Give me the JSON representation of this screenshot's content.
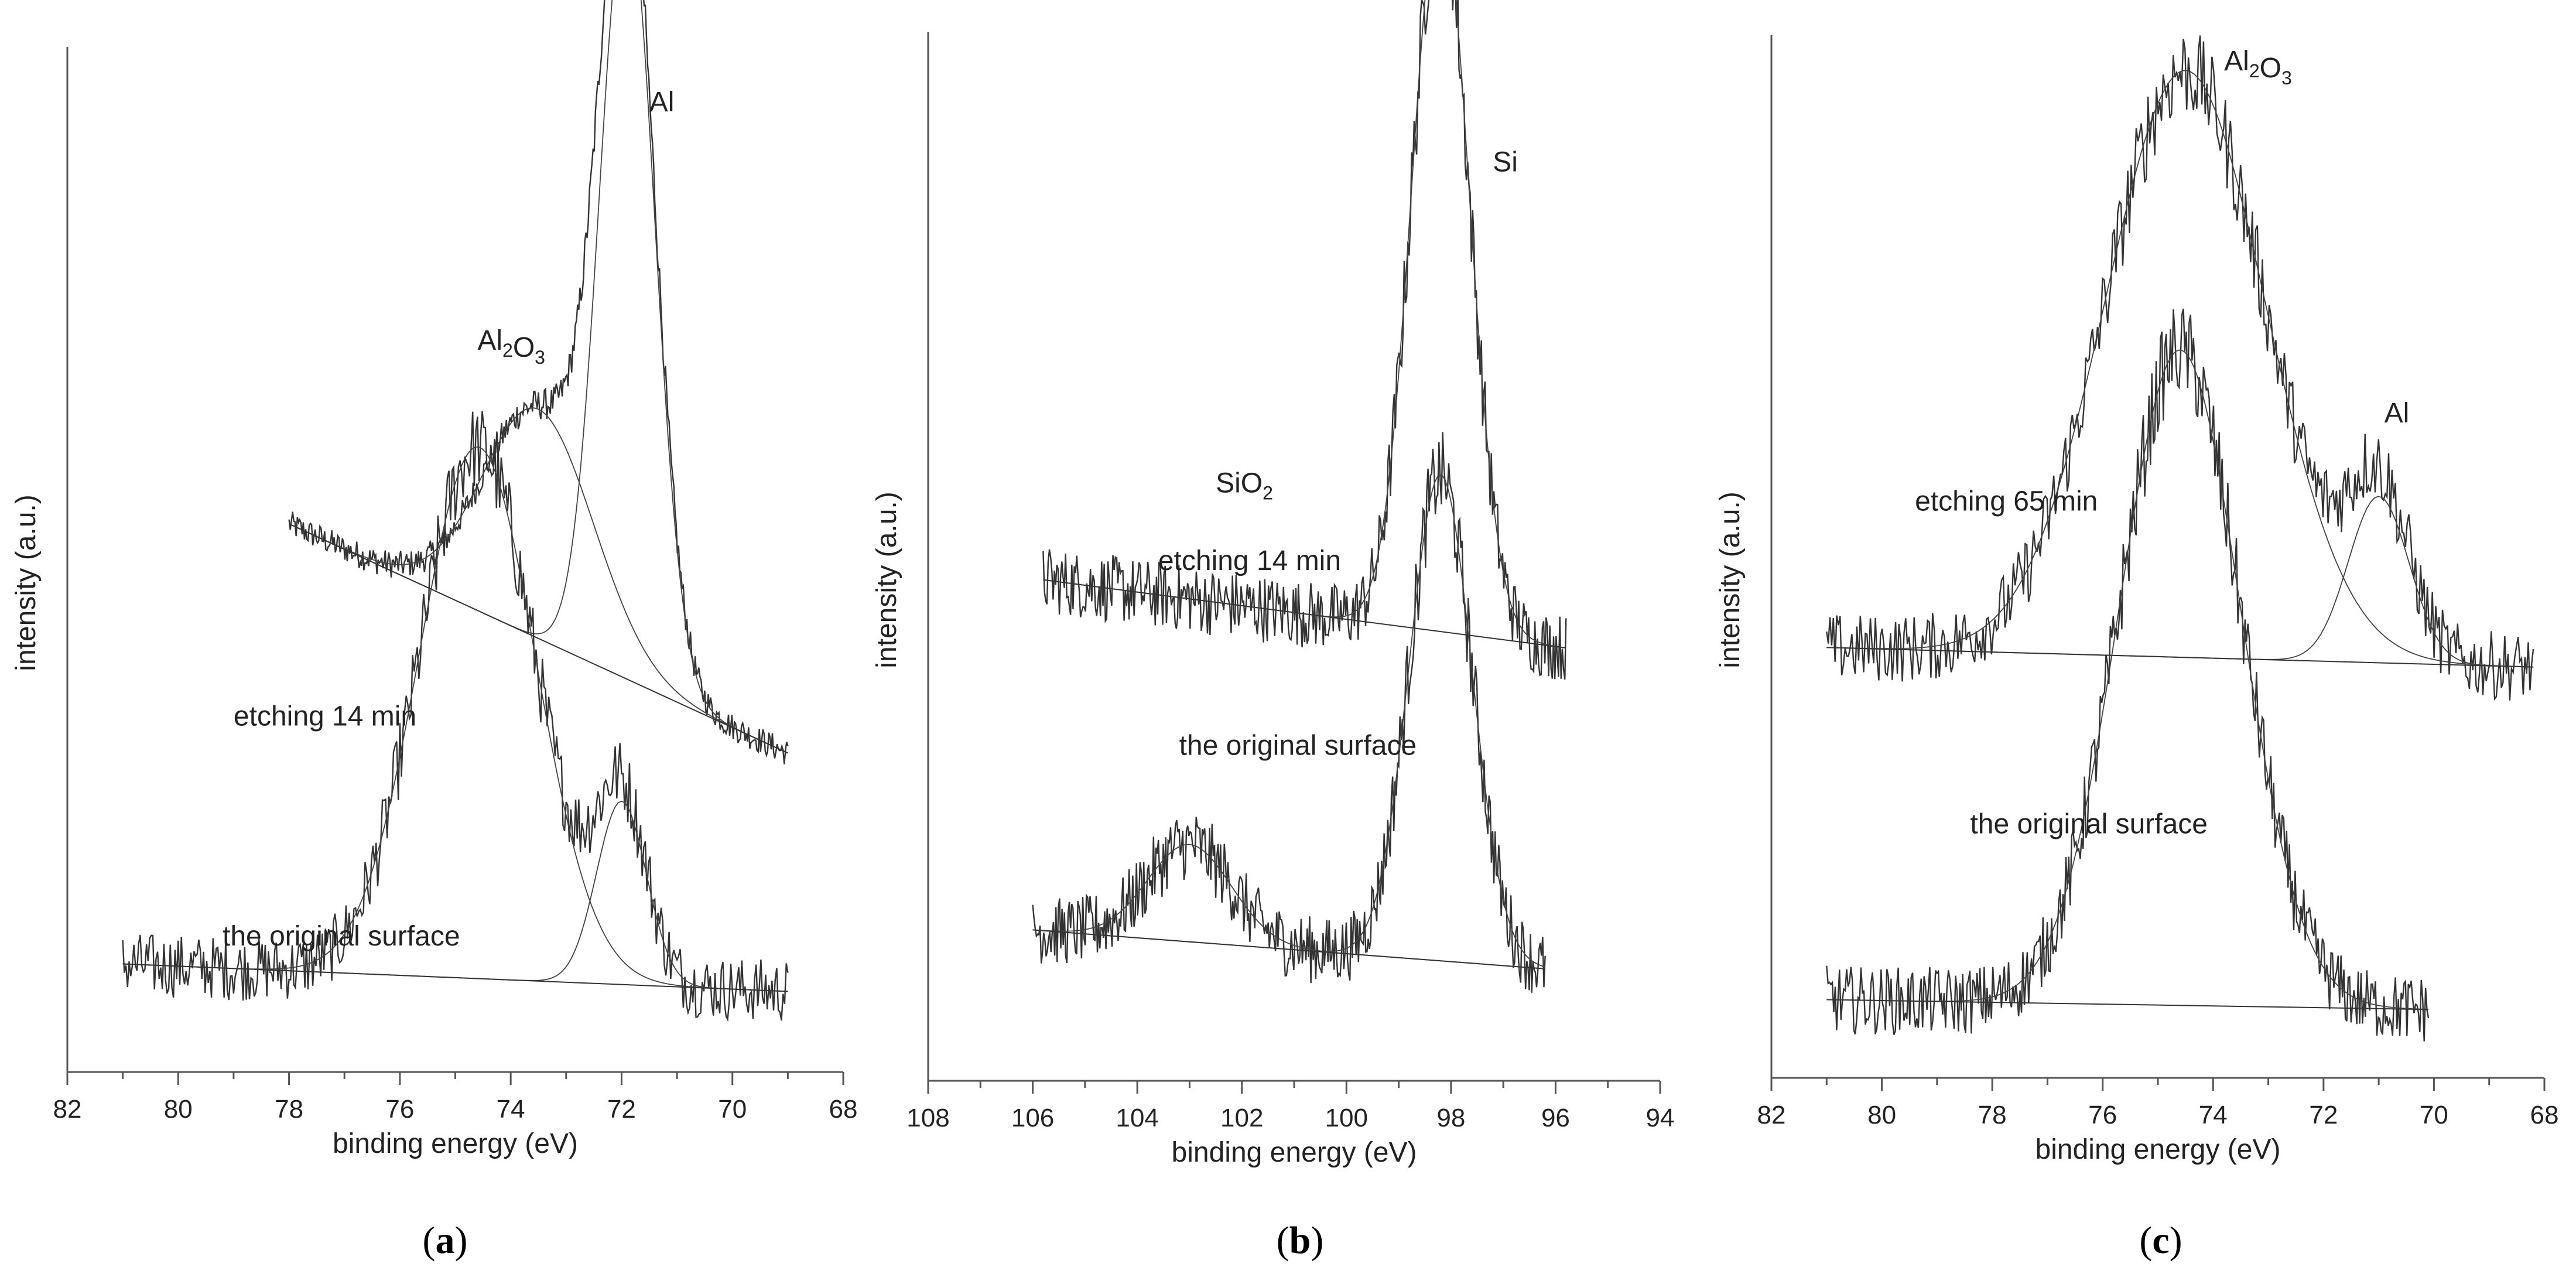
{
  "chart_data": [
    {
      "panel": "a",
      "type": "line",
      "xlabel": "binding energy (eV)",
      "ylabel": "intensity (a.u.)",
      "xlim": [
        82,
        68
      ],
      "xticks": [
        82,
        80,
        78,
        76,
        74,
        72,
        70,
        68
      ],
      "series": [
        {
          "name": "etching 14 min",
          "x_range": [
            78,
            69
          ],
          "peaks": [
            {
              "label": "Al",
              "center": 71.9,
              "height": 0.85,
              "width": 0.5
            },
            {
              "label": "Al2O3",
              "center": 73.5,
              "height": 0.25,
              "width": 1.0
            }
          ],
          "baseline": [
            0.55,
            0.3
          ]
        },
        {
          "name": "the original surface",
          "x_range": [
            81,
            69
          ],
          "peaks": [
            {
              "label": "Al2O3",
              "center": 74.6,
              "height": 0.58,
              "width": 1.05
            },
            {
              "label": "Al",
              "center": 72.0,
              "height": 0.2,
              "width": 0.45
            }
          ],
          "baseline": [
            0.07,
            0.04
          ]
        }
      ],
      "annotations": [
        {
          "text": "Al",
          "x": 71.5,
          "y": 1.0
        },
        {
          "text": "Al2O3",
          "x": 74.6,
          "y": 0.74,
          "main": "Al",
          "sub1": "2",
          "mid": "O",
          "sub2": "3"
        },
        {
          "text": "etching  14 min",
          "x": 79.0,
          "y": 0.33
        },
        {
          "text": "the original surface",
          "x": 79.2,
          "y": 0.09
        }
      ]
    },
    {
      "panel": "b",
      "type": "line",
      "xlabel": "binding energy (eV)",
      "ylabel": "intensity (a.u.)",
      "xlim": [
        108,
        94
      ],
      "xticks": [
        108,
        106,
        104,
        102,
        100,
        98,
        96,
        94
      ],
      "series": [
        {
          "name": "etching 14 min",
          "x_range": [
            105.8,
            95.8
          ],
          "peaks": [
            {
              "label": "Si",
              "center": 98.2,
              "height": 0.75,
              "width": 0.55
            }
          ],
          "baseline": [
            0.47,
            0.4
          ]
        },
        {
          "name": "the original surface",
          "x_range": [
            106,
            96.2
          ],
          "peaks": [
            {
              "label": "SiO2",
              "center": 103.0,
              "height": 0.1,
              "width": 0.8
            },
            {
              "label": "Si",
              "center": 98.2,
              "height": 0.5,
              "width": 0.6
            }
          ],
          "baseline": [
            0.11,
            0.07
          ]
        }
      ],
      "annotations": [
        {
          "text": "Si",
          "x": 97.2,
          "y": 0.89
        },
        {
          "text": "SiO2",
          "x": 102.5,
          "y": 0.56,
          "main": "SiO",
          "sub1": "2",
          "mid": "",
          "sub2": ""
        },
        {
          "text": "etching 14 min",
          "x": 103.6,
          "y": 0.48
        },
        {
          "text": "the original surface",
          "x": 103.2,
          "y": 0.29
        }
      ]
    },
    {
      "panel": "c",
      "type": "line",
      "xlabel": "binding energy (eV)",
      "ylabel": "intensity (a.u.)",
      "xlim": [
        82,
        68
      ],
      "xticks": [
        82,
        80,
        78,
        76,
        74,
        72,
        70,
        68
      ],
      "series": [
        {
          "name": "etching 65 min",
          "x_range": [
            81,
            68.2
          ],
          "peaks": [
            {
              "label": "Al2O3",
              "center": 74.5,
              "height": 0.6,
              "width": 1.45
            },
            {
              "label": "Al",
              "center": 71.0,
              "height": 0.17,
              "width": 0.55
            }
          ],
          "baseline": [
            0.41,
            0.39
          ]
        },
        {
          "name": "the original surface",
          "x_range": [
            81,
            70.1
          ],
          "peaks": [
            {
              "label": "Al2O3",
              "center": 74.6,
              "height": 0.67,
              "width": 1.1
            }
          ],
          "baseline": [
            0.05,
            0.04
          ]
        }
      ],
      "annotations": [
        {
          "text": "Al2O3",
          "x": 73.8,
          "y": 1.0,
          "main": "Al",
          "sub1": "2",
          "mid": "O",
          "sub2": "3"
        },
        {
          "text": "Al",
          "x": 70.9,
          "y": 0.64
        },
        {
          "text": "etching  65 min",
          "x": 79.4,
          "y": 0.55
        },
        {
          "text": "the original surface",
          "x": 78.4,
          "y": 0.22
        }
      ]
    }
  ],
  "captions": {
    "a": "a",
    "b": "b",
    "c": "c"
  }
}
